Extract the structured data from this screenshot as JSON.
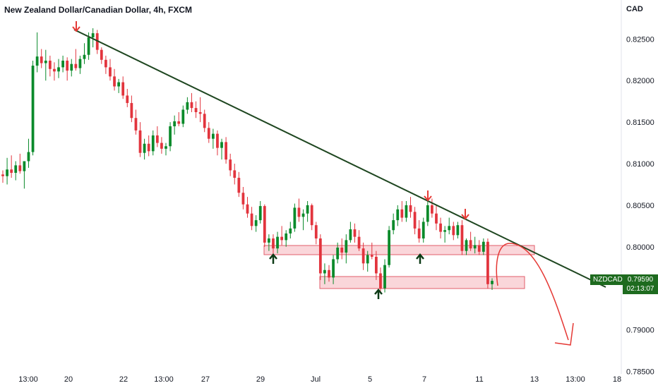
{
  "header": {
    "title": "New Zealand Dollar/Canadian Dollar, 4h, FXCM",
    "currency": "CAD"
  },
  "price_tag": {
    "symbol": "NZDCAD",
    "price": "0.79590",
    "countdown": "02:13:07"
  },
  "colors": {
    "bull": "#26a69a",
    "bear": "#ef5350",
    "bull_dark": "#0a8a2a",
    "bear_dark": "#e2343d",
    "trendline": "#1e4620",
    "zone_fill": "#f8c8cd",
    "zone_stroke": "#e25d6b",
    "arrow_down": "#e53935",
    "arrow_up": "#0d3b16",
    "forecast": "#e53935"
  },
  "chart_data": {
    "type": "candlestick",
    "title": "New Zealand Dollar/Canadian Dollar, 4h, FXCM",
    "y_ticks": [
      "0.82500",
      "0.82000",
      "0.81500",
      "0.81000",
      "0.80500",
      "0.80000",
      "0.79500",
      "0.79000",
      "0.78500"
    ],
    "y_tick_values": [
      0.825,
      0.82,
      0.815,
      0.81,
      0.805,
      0.8,
      0.795,
      0.79,
      0.785
    ],
    "x_ticks": [
      "13:00",
      "20",
      "22",
      "13:00",
      "27",
      "29",
      "Jul",
      "5",
      "7",
      "11",
      "13",
      "13:00",
      "18"
    ],
    "ylim": [
      0.7847,
      0.8297
    ],
    "last_price": 0.7959,
    "candles": [
      [
        0.8087,
        0.8092,
        0.8077,
        0.8085
      ],
      [
        0.8085,
        0.8107,
        0.8075,
        0.8093
      ],
      [
        0.8093,
        0.811,
        0.8083,
        0.8089
      ],
      [
        0.8089,
        0.8103,
        0.808,
        0.8098
      ],
      [
        0.8098,
        0.8112,
        0.8088,
        0.8091
      ],
      [
        0.8091,
        0.8102,
        0.807,
        0.8103
      ],
      [
        0.8103,
        0.813,
        0.8095,
        0.8114
      ],
      [
        0.8114,
        0.8224,
        0.811,
        0.8218
      ],
      [
        0.8218,
        0.8258,
        0.821,
        0.8229
      ],
      [
        0.8229,
        0.8238,
        0.8215,
        0.8221
      ],
      [
        0.8221,
        0.8237,
        0.82,
        0.8224
      ],
      [
        0.8224,
        0.823,
        0.8205,
        0.8214
      ],
      [
        0.8214,
        0.8222,
        0.82,
        0.8211
      ],
      [
        0.8211,
        0.8226,
        0.8203,
        0.8216
      ],
      [
        0.8216,
        0.823,
        0.821,
        0.8224
      ],
      [
        0.8224,
        0.8228,
        0.82,
        0.8212
      ],
      [
        0.8212,
        0.8226,
        0.8205,
        0.822
      ],
      [
        0.822,
        0.8238,
        0.8212,
        0.8215
      ],
      [
        0.8215,
        0.823,
        0.8208,
        0.8226
      ],
      [
        0.8226,
        0.8245,
        0.822,
        0.8231
      ],
      [
        0.8231,
        0.8258,
        0.8225,
        0.8252
      ],
      [
        0.8252,
        0.8263,
        0.824,
        0.8257
      ],
      [
        0.8257,
        0.8261,
        0.8232,
        0.8237
      ],
      [
        0.8237,
        0.824,
        0.822,
        0.8225
      ],
      [
        0.8225,
        0.823,
        0.8208,
        0.8216
      ],
      [
        0.8216,
        0.8226,
        0.82,
        0.8205
      ],
      [
        0.8205,
        0.8214,
        0.8188,
        0.8193
      ],
      [
        0.8193,
        0.8202,
        0.8185,
        0.8198
      ],
      [
        0.8198,
        0.8205,
        0.8178,
        0.8182
      ],
      [
        0.8182,
        0.819,
        0.8168,
        0.8173
      ],
      [
        0.8173,
        0.8182,
        0.815,
        0.8155
      ],
      [
        0.8155,
        0.8165,
        0.8135,
        0.814
      ],
      [
        0.814,
        0.815,
        0.8108,
        0.8113
      ],
      [
        0.8113,
        0.813,
        0.8105,
        0.8124
      ],
      [
        0.8124,
        0.8134,
        0.8109,
        0.8115
      ],
      [
        0.8115,
        0.814,
        0.811,
        0.8134
      ],
      [
        0.8134,
        0.8145,
        0.812,
        0.8125
      ],
      [
        0.8125,
        0.8132,
        0.8112,
        0.8118
      ],
      [
        0.8118,
        0.8125,
        0.811,
        0.8121
      ],
      [
        0.8121,
        0.815,
        0.8115,
        0.8145
      ],
      [
        0.8145,
        0.8158,
        0.8135,
        0.8151
      ],
      [
        0.8151,
        0.8162,
        0.8145,
        0.8148
      ],
      [
        0.8148,
        0.817,
        0.8144,
        0.8165
      ],
      [
        0.8165,
        0.818,
        0.816,
        0.8174
      ],
      [
        0.8174,
        0.8185,
        0.8162,
        0.8167
      ],
      [
        0.8167,
        0.8175,
        0.8155,
        0.8162
      ],
      [
        0.8162,
        0.818,
        0.815,
        0.816
      ],
      [
        0.816,
        0.8165,
        0.8138,
        0.8143
      ],
      [
        0.8143,
        0.815,
        0.8125,
        0.813
      ],
      [
        0.813,
        0.8142,
        0.8118,
        0.8136
      ],
      [
        0.8136,
        0.814,
        0.811,
        0.8119
      ],
      [
        0.8119,
        0.813,
        0.8105,
        0.8126
      ],
      [
        0.8126,
        0.8132,
        0.81,
        0.8105
      ],
      [
        0.8105,
        0.8112,
        0.8085,
        0.8092
      ],
      [
        0.8092,
        0.81,
        0.8075,
        0.8083
      ],
      [
        0.8083,
        0.809,
        0.806,
        0.8065
      ],
      [
        0.8065,
        0.8072,
        0.8045,
        0.8051
      ],
      [
        0.8051,
        0.806,
        0.8035,
        0.804
      ],
      [
        0.804,
        0.8048,
        0.802,
        0.8025
      ],
      [
        0.8025,
        0.8038,
        0.8018,
        0.8032
      ],
      [
        0.8032,
        0.8055,
        0.8028,
        0.8049
      ],
      [
        0.8049,
        0.8051,
        0.8,
        0.8005
      ],
      [
        0.8005,
        0.8015,
        0.7995,
        0.801
      ],
      [
        0.801,
        0.8015,
        0.799,
        0.7998
      ],
      [
        0.7998,
        0.8018,
        0.7992,
        0.8012
      ],
      [
        0.8012,
        0.8025,
        0.8002,
        0.8008
      ],
      [
        0.8008,
        0.802,
        0.8,
        0.8016
      ],
      [
        0.8016,
        0.803,
        0.801,
        0.8022
      ],
      [
        0.8022,
        0.8052,
        0.8018,
        0.8047
      ],
      [
        0.8047,
        0.8058,
        0.803,
        0.8036
      ],
      [
        0.8036,
        0.8045,
        0.802,
        0.804
      ],
      [
        0.804,
        0.8055,
        0.803,
        0.805
      ],
      [
        0.805,
        0.8052,
        0.802,
        0.8026
      ],
      [
        0.8026,
        0.803,
        0.8003,
        0.801
      ],
      [
        0.801,
        0.8015,
        0.796,
        0.7968
      ],
      [
        0.7968,
        0.798,
        0.7955,
        0.7972
      ],
      [
        0.7972,
        0.7978,
        0.7958,
        0.7963
      ],
      [
        0.7963,
        0.799,
        0.7955,
        0.7985
      ],
      [
        0.7985,
        0.8005,
        0.798,
        0.7999
      ],
      [
        0.7999,
        0.801,
        0.7985,
        0.7993
      ],
      [
        0.7993,
        0.8015,
        0.798,
        0.8008
      ],
      [
        0.8008,
        0.803,
        0.8005,
        0.8021
      ],
      [
        0.8021,
        0.8028,
        0.8005,
        0.8012
      ],
      [
        0.8012,
        0.802,
        0.7995,
        0.7998
      ],
      [
        0.7998,
        0.8005,
        0.7972,
        0.798
      ],
      [
        0.798,
        0.7995,
        0.797,
        0.799
      ],
      [
        0.799,
        0.8005,
        0.7985,
        0.7988
      ],
      [
        0.7988,
        0.7995,
        0.796,
        0.7968
      ],
      [
        0.7968,
        0.7975,
        0.7945,
        0.795
      ],
      [
        0.795,
        0.7985,
        0.7945,
        0.7978
      ],
      [
        0.7978,
        0.8025,
        0.7975,
        0.802
      ],
      [
        0.802,
        0.804,
        0.8015,
        0.8032
      ],
      [
        0.8032,
        0.805,
        0.8025,
        0.8045
      ],
      [
        0.8045,
        0.8055,
        0.803,
        0.8035
      ],
      [
        0.8035,
        0.8055,
        0.803,
        0.805
      ],
      [
        0.805,
        0.806,
        0.8035,
        0.8042
      ],
      [
        0.8042,
        0.8048,
        0.8015,
        0.8022
      ],
      [
        0.8022,
        0.8032,
        0.8005,
        0.801
      ],
      [
        0.801,
        0.8035,
        0.8005,
        0.803
      ],
      [
        0.803,
        0.8055,
        0.8025,
        0.805
      ],
      [
        0.805,
        0.8058,
        0.8035,
        0.804
      ],
      [
        0.804,
        0.805,
        0.802,
        0.8028
      ],
      [
        0.8028,
        0.8035,
        0.801,
        0.8018
      ],
      [
        0.8018,
        0.8025,
        0.8005,
        0.802
      ],
      [
        0.802,
        0.8035,
        0.8015,
        0.8025
      ],
      [
        0.8025,
        0.803,
        0.8008,
        0.8014
      ],
      [
        0.8014,
        0.803,
        0.801,
        0.8026
      ],
      [
        0.8026,
        0.8032,
        0.799,
        0.7995
      ],
      [
        0.7995,
        0.801,
        0.799,
        0.8008
      ],
      [
        0.8008,
        0.8018,
        0.7995,
        0.7998
      ],
      [
        0.7998,
        0.8012,
        0.7992,
        0.8002
      ],
      [
        0.8002,
        0.8008,
        0.799,
        0.7994
      ],
      [
        0.7994,
        0.801,
        0.799,
        0.8006
      ],
      [
        0.8006,
        0.801,
        0.795,
        0.7955
      ],
      [
        0.7955,
        0.7962,
        0.7948,
        0.7959
      ]
    ]
  }
}
